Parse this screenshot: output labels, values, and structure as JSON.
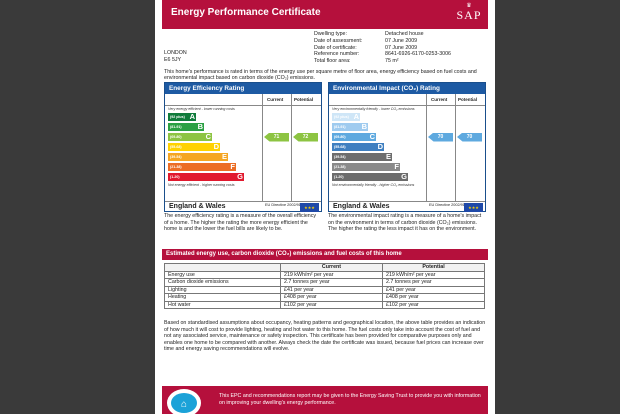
{
  "header": {
    "title": "Energy Performance Certificate",
    "logo_text": "SAP",
    "logo_crest": "HM Government"
  },
  "address": {
    "line1": "LONDON",
    "line2": "E6 5JY"
  },
  "details": [
    {
      "label": "Dwelling type:",
      "value": "Detached house"
    },
    {
      "label": "Date of assessment:",
      "value": "07 June 2009"
    },
    {
      "label": "Date of certificate:",
      "value": "07 June 2009"
    },
    {
      "label": "Reference number:",
      "value": "8641-6926-6170-0253-3006"
    },
    {
      "label": "Total floor area:",
      "value": "75 m²"
    }
  ],
  "intro": "This home's performance is rated in terms of the energy use per square metre of floor area, energy efficiency based on fuel costs and environmental impact based on carbon dioxide (CO₂) emissions.",
  "efficiency": {
    "title": "Energy Efficiency Rating",
    "col_current": "Current",
    "col_potential": "Potential",
    "top_note": "Very energy efficient - lower running costs",
    "bottom_note": "Not energy efficient - higher running costs",
    "bands": [
      {
        "range": "(92 plus)",
        "letter": "A",
        "color": "#0f7b3b"
      },
      {
        "range": "(81-91)",
        "letter": "B",
        "color": "#2aa043"
      },
      {
        "range": "(69-80)",
        "letter": "C",
        "color": "#8dc442"
      },
      {
        "range": "(55-68)",
        "letter": "D",
        "color": "#ffd200"
      },
      {
        "range": "(39-54)",
        "letter": "E",
        "color": "#f5a623"
      },
      {
        "range": "(21-38)",
        "letter": "F",
        "color": "#ec6d25"
      },
      {
        "range": "(1-20)",
        "letter": "G",
        "color": "#e1192e"
      }
    ],
    "current": {
      "value": "71",
      "band": "C",
      "color": "#8dc442"
    },
    "potential": {
      "value": "72",
      "band": "C",
      "color": "#8dc442"
    },
    "footer_region": "England & Wales",
    "footer_directive": "EU Directive 2002/91/EC",
    "description": "The energy efficiency rating is a measure of the overall efficiency of a home. The higher the rating the more energy efficient the home is and the lower the fuel bills are likely to be."
  },
  "environmental": {
    "title": "Environmental Impact (CO₂) Rating",
    "col_current": "Current",
    "col_potential": "Potential",
    "top_note": "Very environmentally friendly - lower CO₂ emissions",
    "bottom_note": "Not environmentally friendly - higher CO₂ emissions",
    "bands": [
      {
        "range": "(92 plus)",
        "letter": "A",
        "color": "#cfe6f7"
      },
      {
        "range": "(81-91)",
        "letter": "B",
        "color": "#9fcbef"
      },
      {
        "range": "(69-80)",
        "letter": "C",
        "color": "#5ea9df"
      },
      {
        "range": "(55-68)",
        "letter": "D",
        "color": "#3f7fc0"
      },
      {
        "range": "(39-54)",
        "letter": "E",
        "color": "#6d6d6d"
      },
      {
        "range": "(21-38)",
        "letter": "F",
        "color": "#8a8a8a"
      },
      {
        "range": "(1-20)",
        "letter": "G",
        "color": "#6c6c6c"
      }
    ],
    "current": {
      "value": "70",
      "band": "C",
      "color": "#5ea9df"
    },
    "potential": {
      "value": "70",
      "band": "C",
      "color": "#5ea9df"
    },
    "footer_region": "England & Wales",
    "footer_directive": "EU Directive 2002/91/EC",
    "description": "The environmental impact rating is a measure of a home's impact on the environment in terms of carbon dioxide (CO₂) emissions. The higher the rating the less impact it has on the environment."
  },
  "costs": {
    "title": "Estimated energy use, carbon dioxide (CO₂) emissions and fuel costs of this home",
    "col_current": "Current",
    "col_potential": "Potential",
    "rows": [
      {
        "label": "Energy use",
        "current": "219 kWh/m² per year",
        "potential": "219 kWh/m² per year"
      },
      {
        "label": "Carbon dioxide emissions",
        "current": "2.7 tonnes per year",
        "potential": "2.7 tonnes per year"
      },
      {
        "label": "Lighting",
        "current": "£41 per year",
        "potential": "£41 per year"
      },
      {
        "label": "Heating",
        "current": "£408 per year",
        "potential": "£408 per year"
      },
      {
        "label": "Hot water",
        "current": "£102 per year",
        "potential": "£102 per year"
      }
    ]
  },
  "explanation": "Based on standardised assumptions about occupancy, heating patterns and geographical location, the above table provides an indication of how much it will cost to provide lighting, heating and hot water to this home. The fuel costs only take into account the cost of fuel and not any associated service, maintenance or safety inspection. This certificate has been provided for comparative purposes only and enables one home to be compared with another. Always check the date the certificate was issued, because fuel prices can increase over time and energy saving recommendations will evolve.",
  "footer": {
    "text": "This EPC and recommendations report may be given to the Energy Saving Trust to provide you with information on improving your dwelling's energy performance."
  }
}
